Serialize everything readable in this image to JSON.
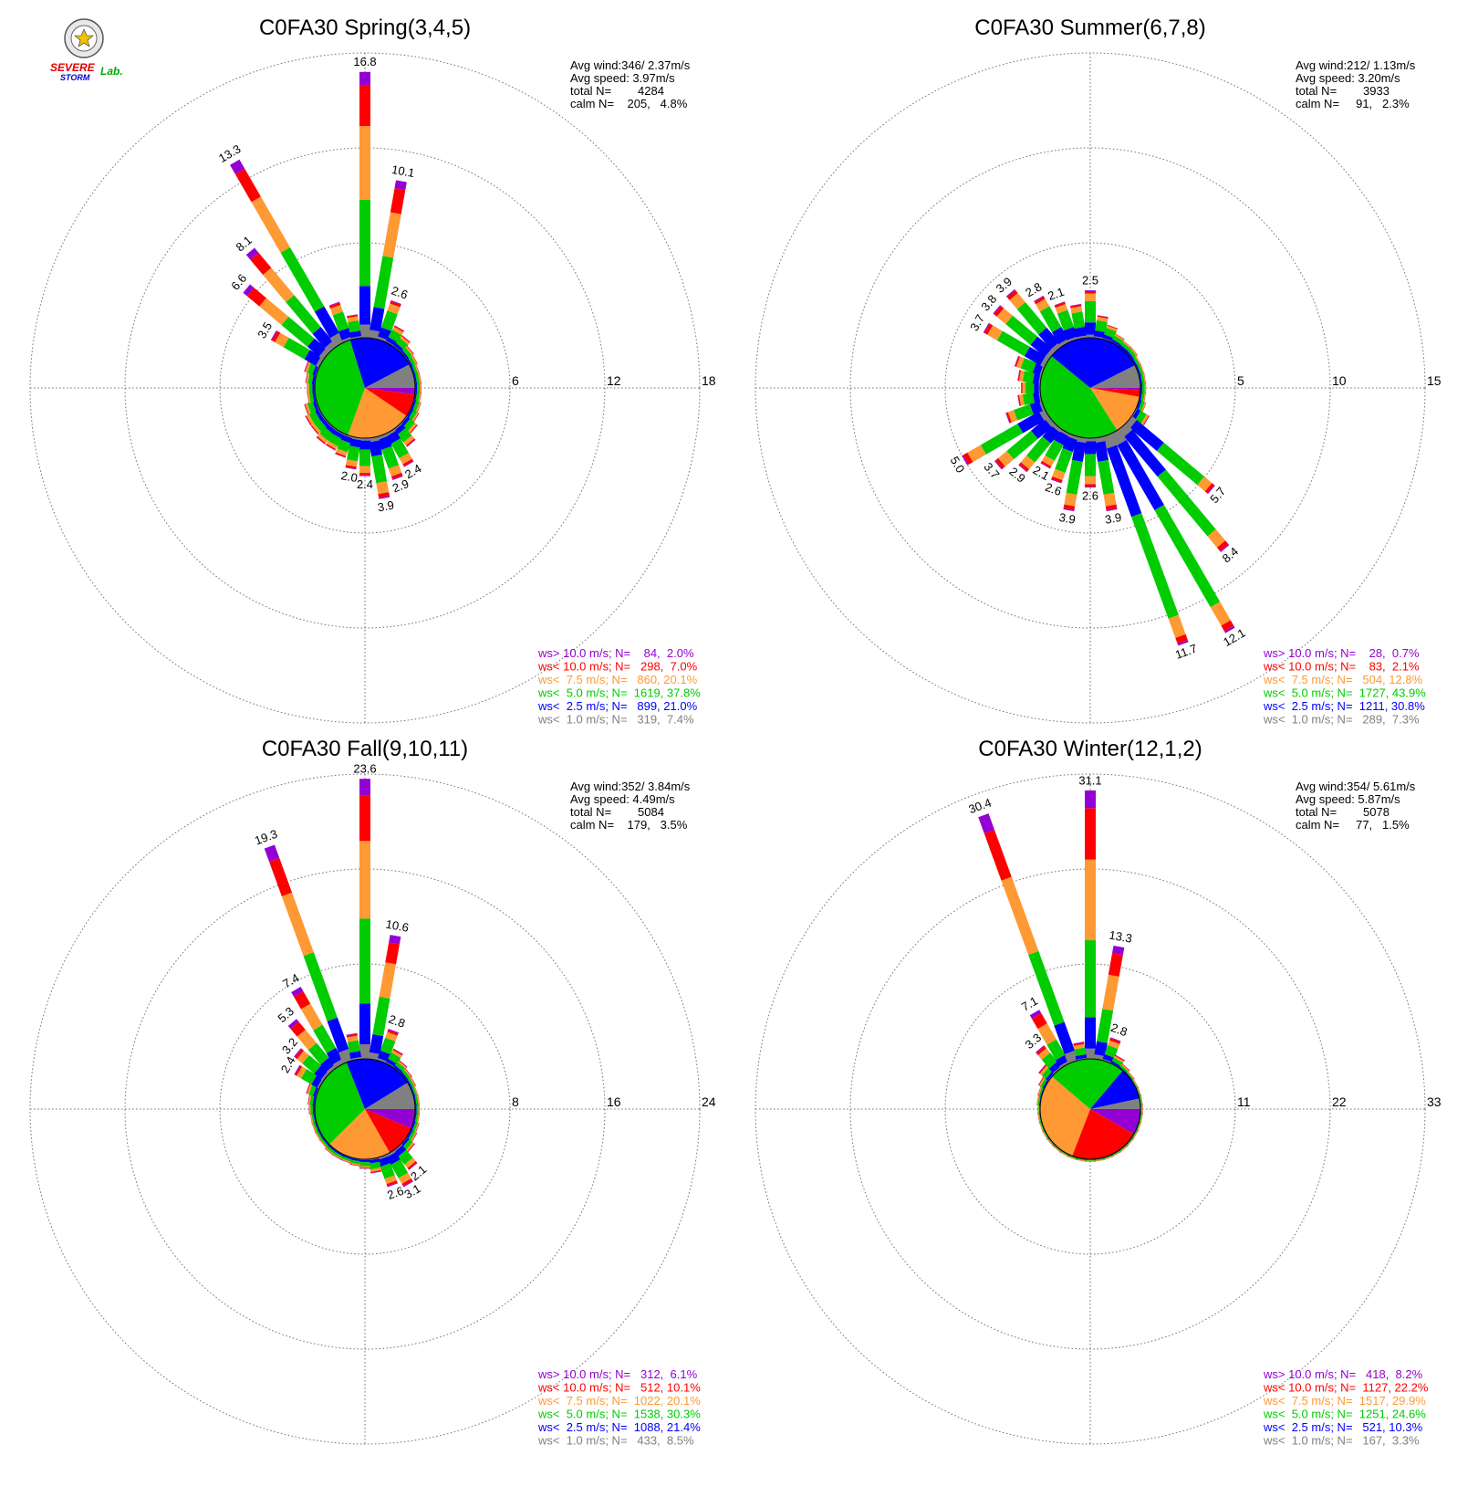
{
  "logo": {
    "text_parts": [
      "SEVERE",
      "STORM",
      "Lab."
    ]
  },
  "colors": {
    "cat_gt10": "#9400d3",
    "cat_lt10": "#ff0000",
    "cat_lt7_5": "#ff9933",
    "cat_lt5": "#00cc00",
    "cat_lt2_5": "#0000ff",
    "cat_lt1": "#808080",
    "grid": "#777777"
  },
  "chart_data": [
    {
      "type": "windrose",
      "title": "C0FA30 Spring(3,4,5)",
      "radial_ticks": [
        "6",
        "12",
        "18"
      ],
      "rmax": 18,
      "stats": [
        "Avg wind:346/ 2.37m/s",
        "Avg speed: 3.97m/s",
        "total N=        4284",
        "calm N=    205,   4.8%"
      ],
      "legend": [
        {
          "label": "ws> 10.0 m/s; N=    84,  2.0%",
          "color_key": "cat_gt10"
        },
        {
          "label": "ws< 10.0 m/s; N=   298,  7.0%",
          "color_key": "cat_lt10"
        },
        {
          "label": "ws<  7.5 m/s; N=   860, 20.1%",
          "color_key": "cat_lt7_5"
        },
        {
          "label": "ws<  5.0 m/s; N=  1619, 37.8%",
          "color_key": "cat_lt5"
        },
        {
          "label": "ws<  2.5 m/s; N=   899, 21.0%",
          "color_key": "cat_lt2_5"
        },
        {
          "label": "ws<  1.0 m/s; N=   319,  7.4%",
          "color_key": "cat_lt1"
        }
      ],
      "pie": [
        2.0,
        7.0,
        20.1,
        37.8,
        21.0,
        7.4
      ],
      "bars": [
        {
          "dir": 0,
          "value": 16.8,
          "label": "16.8"
        },
        {
          "dir": 10,
          "value": 10.1,
          "label": "10.1"
        },
        {
          "dir": 20,
          "value": 2.6,
          "label": "2.6"
        },
        {
          "dir": 30,
          "value": 1.2
        },
        {
          "dir": 40,
          "value": 0.9
        },
        {
          "dir": 50,
          "value": 0.6
        },
        {
          "dir": 60,
          "value": 0.5
        },
        {
          "dir": 70,
          "value": 0.4
        },
        {
          "dir": 80,
          "value": 0.4
        },
        {
          "dir": 90,
          "value": 0.4
        },
        {
          "dir": 100,
          "value": 0.4
        },
        {
          "dir": 110,
          "value": 0.5
        },
        {
          "dir": 120,
          "value": 0.6
        },
        {
          "dir": 130,
          "value": 0.9
        },
        {
          "dir": 140,
          "value": 1.4
        },
        {
          "dir": 150,
          "value": 2.4,
          "label": "2.4"
        },
        {
          "dir": 160,
          "value": 2.9,
          "label": "2.9"
        },
        {
          "dir": 170,
          "value": 3.9,
          "label": "3.9"
        },
        {
          "dir": 180,
          "value": 2.4,
          "label": "2.4"
        },
        {
          "dir": 190,
          "value": 2.0,
          "label": "2.0"
        },
        {
          "dir": 200,
          "value": 1.4
        },
        {
          "dir": 210,
          "value": 1.2
        },
        {
          "dir": 220,
          "value": 1.2
        },
        {
          "dir": 230,
          "value": 1.0
        },
        {
          "dir": 240,
          "value": 1.0
        },
        {
          "dir": 250,
          "value": 0.8
        },
        {
          "dir": 260,
          "value": 0.5
        },
        {
          "dir": 270,
          "value": 0.5
        },
        {
          "dir": 280,
          "value": 0.6
        },
        {
          "dir": 290,
          "value": 0.8
        },
        {
          "dir": 300,
          "value": 3.5,
          "label": "3.5"
        },
        {
          "dir": 310,
          "value": 6.6,
          "label": "6.6"
        },
        {
          "dir": 320,
          "value": 8.1,
          "label": "8.1"
        },
        {
          "dir": 330,
          "value": 13.3,
          "label": "13.3"
        },
        {
          "dir": 340,
          "value": 2.5
        },
        {
          "dir": 350,
          "value": 1.5
        }
      ]
    },
    {
      "type": "windrose",
      "title": "C0FA30 Summer(6,7,8)",
      "radial_ticks": [
        "5",
        "10",
        "15"
      ],
      "rmax": 15,
      "stats": [
        "Avg wind:212/ 1.13m/s",
        "Avg speed: 3.20m/s",
        "total N=        3933",
        "calm N=     91,   2.3%"
      ],
      "legend": [
        {
          "label": "ws> 10.0 m/s; N=    28,  0.7%",
          "color_key": "cat_gt10"
        },
        {
          "label": "ws< 10.0 m/s; N=    83,  2.1%",
          "color_key": "cat_lt10"
        },
        {
          "label": "ws<  7.5 m/s; N=   504, 12.8%",
          "color_key": "cat_lt7_5"
        },
        {
          "label": "ws<  5.0 m/s; N=  1727, 43.9%",
          "color_key": "cat_lt5"
        },
        {
          "label": "ws<  2.5 m/s; N=  1211, 30.8%",
          "color_key": "cat_lt2_5"
        },
        {
          "label": "ws<  1.0 m/s; N=   289,  7.3%",
          "color_key": "cat_lt1"
        }
      ],
      "pie": [
        0.7,
        2.1,
        12.8,
        43.9,
        30.8,
        7.3
      ],
      "bars": [
        {
          "dir": 0,
          "value": 2.5,
          "label": "2.5"
        },
        {
          "dir": 10,
          "value": 1.2
        },
        {
          "dir": 20,
          "value": 0.8
        },
        {
          "dir": 30,
          "value": 0.5
        },
        {
          "dir": 40,
          "value": 0.4
        },
        {
          "dir": 50,
          "value": 0.4
        },
        {
          "dir": 60,
          "value": 0.3
        },
        {
          "dir": 70,
          "value": 0.3
        },
        {
          "dir": 80,
          "value": 0.3
        },
        {
          "dir": 90,
          "value": 0.3
        },
        {
          "dir": 100,
          "value": 0.3
        },
        {
          "dir": 110,
          "value": 0.4
        },
        {
          "dir": 120,
          "value": 0.8
        },
        {
          "dir": 130,
          "value": 5.7,
          "label": "5.7"
        },
        {
          "dir": 140,
          "value": 8.4,
          "label": "8.4"
        },
        {
          "dir": 150,
          "value": 12.1,
          "label": "12.1"
        },
        {
          "dir": 160,
          "value": 11.7,
          "label": "11.7"
        },
        {
          "dir": 170,
          "value": 3.9,
          "label": "3.9"
        },
        {
          "dir": 180,
          "value": 2.6,
          "label": "2.6"
        },
        {
          "dir": 190,
          "value": 3.9,
          "label": "3.9"
        },
        {
          "dir": 200,
          "value": 2.6,
          "label": "2.6"
        },
        {
          "dir": 210,
          "value": 2.1,
          "label": "2.1"
        },
        {
          "dir": 220,
          "value": 2.9,
          "label": "2.9"
        },
        {
          "dir": 230,
          "value": 3.7,
          "label": "3.7"
        },
        {
          "dir": 240,
          "value": 5.0,
          "label": "5.0"
        },
        {
          "dir": 250,
          "value": 2.0
        },
        {
          "dir": 260,
          "value": 1.2
        },
        {
          "dir": 270,
          "value": 1.0
        },
        {
          "dir": 280,
          "value": 1.2
        },
        {
          "dir": 290,
          "value": 1.5
        },
        {
          "dir": 300,
          "value": 3.7,
          "label": "3.7"
        },
        {
          "dir": 310,
          "value": 3.8,
          "label": "3.8"
        },
        {
          "dir": 320,
          "value": 3.9,
          "label": "3.9"
        },
        {
          "dir": 330,
          "value": 2.8,
          "label": "2.8"
        },
        {
          "dir": 340,
          "value": 2.1,
          "label": "2.1"
        },
        {
          "dir": 350,
          "value": 1.8
        }
      ]
    },
    {
      "type": "windrose",
      "title": "C0FA30 Fall(9,10,11)",
      "radial_ticks": [
        "8",
        "16",
        "24"
      ],
      "rmax": 24,
      "stats": [
        "Avg wind:352/ 3.84m/s",
        "Avg speed: 4.49m/s",
        "total N=        5084",
        "calm N=    179,   3.5%"
      ],
      "legend": [
        {
          "label": "ws> 10.0 m/s; N=   312,  6.1%",
          "color_key": "cat_gt10"
        },
        {
          "label": "ws< 10.0 m/s; N=   512, 10.1%",
          "color_key": "cat_lt10"
        },
        {
          "label": "ws<  7.5 m/s; N=  1022, 20.1%",
          "color_key": "cat_lt7_5"
        },
        {
          "label": "ws<  5.0 m/s; N=  1538, 30.3%",
          "color_key": "cat_lt5"
        },
        {
          "label": "ws<  2.5 m/s; N=  1088, 21.4%",
          "color_key": "cat_lt2_5"
        },
        {
          "label": "ws<  1.0 m/s; N=   433,  8.5%",
          "color_key": "cat_lt1"
        }
      ],
      "pie": [
        6.1,
        10.1,
        20.1,
        30.3,
        21.4,
        8.5
      ],
      "bars": [
        {
          "dir": 0,
          "value": 23.6,
          "label": "23.6"
        },
        {
          "dir": 10,
          "value": 10.6,
          "label": "10.6"
        },
        {
          "dir": 20,
          "value": 2.8,
          "label": "2.8"
        },
        {
          "dir": 30,
          "value": 1.4
        },
        {
          "dir": 40,
          "value": 0.8
        },
        {
          "dir": 50,
          "value": 0.6
        },
        {
          "dir": 60,
          "value": 0.5
        },
        {
          "dir": 70,
          "value": 0.4
        },
        {
          "dir": 80,
          "value": 0.4
        },
        {
          "dir": 90,
          "value": 0.4
        },
        {
          "dir": 100,
          "value": 0.4
        },
        {
          "dir": 110,
          "value": 0.5
        },
        {
          "dir": 120,
          "value": 0.6
        },
        {
          "dir": 130,
          "value": 0.9
        },
        {
          "dir": 140,
          "value": 2.1,
          "label": "2.1"
        },
        {
          "dir": 150,
          "value": 3.1,
          "label": "3.1"
        },
        {
          "dir": 160,
          "value": 2.6,
          "label": "2.6"
        },
        {
          "dir": 170,
          "value": 1.2
        },
        {
          "dir": 180,
          "value": 0.8
        },
        {
          "dir": 190,
          "value": 0.6
        },
        {
          "dir": 200,
          "value": 0.5
        },
        {
          "dir": 210,
          "value": 0.5
        },
        {
          "dir": 220,
          "value": 0.5
        },
        {
          "dir": 230,
          "value": 0.4
        },
        {
          "dir": 240,
          "value": 0.4
        },
        {
          "dir": 250,
          "value": 0.4
        },
        {
          "dir": 260,
          "value": 0.4
        },
        {
          "dir": 270,
          "value": 0.5
        },
        {
          "dir": 280,
          "value": 0.6
        },
        {
          "dir": 290,
          "value": 0.9
        },
        {
          "dir": 300,
          "value": 2.4,
          "label": "2.4"
        },
        {
          "dir": 310,
          "value": 3.2,
          "label": "3.2"
        },
        {
          "dir": 320,
          "value": 5.3,
          "label": "5.3"
        },
        {
          "dir": 330,
          "value": 7.4,
          "label": "7.4"
        },
        {
          "dir": 340,
          "value": 19.3,
          "label": "19.3"
        },
        {
          "dir": 350,
          "value": 2.2
        }
      ]
    },
    {
      "type": "windrose",
      "title": "C0FA30 Winter(12,1,2)",
      "radial_ticks": [
        "11",
        "22",
        "33"
      ],
      "rmax": 33,
      "stats": [
        "Avg wind:354/ 5.61m/s",
        "Avg speed: 5.87m/s",
        "total N=        5078",
        "calm N=     77,   1.5%"
      ],
      "legend": [
        {
          "label": "ws> 10.0 m/s; N=   418,  8.2%",
          "color_key": "cat_gt10"
        },
        {
          "label": "ws< 10.0 m/s; N=  1127, 22.2%",
          "color_key": "cat_lt10"
        },
        {
          "label": "ws<  7.5 m/s; N=  1517, 29.9%",
          "color_key": "cat_lt7_5"
        },
        {
          "label": "ws<  5.0 m/s; N=  1251, 24.6%",
          "color_key": "cat_lt5"
        },
        {
          "label": "ws<  2.5 m/s; N=   521, 10.3%",
          "color_key": "cat_lt2_5"
        },
        {
          "label": "ws<  1.0 m/s; N=   167,  3.3%",
          "color_key": "cat_lt1"
        }
      ],
      "pie": [
        8.2,
        22.2,
        29.9,
        24.6,
        10.3,
        3.3
      ],
      "bars": [
        {
          "dir": 0,
          "value": 31.1,
          "label": "31.1"
        },
        {
          "dir": 10,
          "value": 13.3,
          "label": "13.3"
        },
        {
          "dir": 20,
          "value": 2.8,
          "label": "2.8"
        },
        {
          "dir": 30,
          "value": 1.1
        },
        {
          "dir": 40,
          "value": 0.6
        },
        {
          "dir": 50,
          "value": 0.4
        },
        {
          "dir": 60,
          "value": 0.3
        },
        {
          "dir": 70,
          "value": 0.3
        },
        {
          "dir": 80,
          "value": 0.3
        },
        {
          "dir": 90,
          "value": 0.3
        },
        {
          "dir": 100,
          "value": 0.3
        },
        {
          "dir": 110,
          "value": 0.3
        },
        {
          "dir": 120,
          "value": 0.3
        },
        {
          "dir": 130,
          "value": 0.3
        },
        {
          "dir": 140,
          "value": 0.3
        },
        {
          "dir": 150,
          "value": 0.3
        },
        {
          "dir": 160,
          "value": 0.3
        },
        {
          "dir": 170,
          "value": 0.3
        },
        {
          "dir": 180,
          "value": 0.3
        },
        {
          "dir": 190,
          "value": 0.3
        },
        {
          "dir": 200,
          "value": 0.3
        },
        {
          "dir": 210,
          "value": 0.3
        },
        {
          "dir": 220,
          "value": 0.3
        },
        {
          "dir": 230,
          "value": 0.3
        },
        {
          "dir": 240,
          "value": 0.3
        },
        {
          "dir": 250,
          "value": 0.3
        },
        {
          "dir": 260,
          "value": 0.3
        },
        {
          "dir": 270,
          "value": 0.3
        },
        {
          "dir": 280,
          "value": 0.4
        },
        {
          "dir": 290,
          "value": 0.5
        },
        {
          "dir": 300,
          "value": 0.8
        },
        {
          "dir": 310,
          "value": 1.5
        },
        {
          "dir": 320,
          "value": 3.3,
          "label": "3.3"
        },
        {
          "dir": 330,
          "value": 7.1,
          "label": "7.1"
        },
        {
          "dir": 340,
          "value": 30.4,
          "label": "30.4"
        },
        {
          "dir": 350,
          "value": 2.0
        }
      ]
    }
  ]
}
